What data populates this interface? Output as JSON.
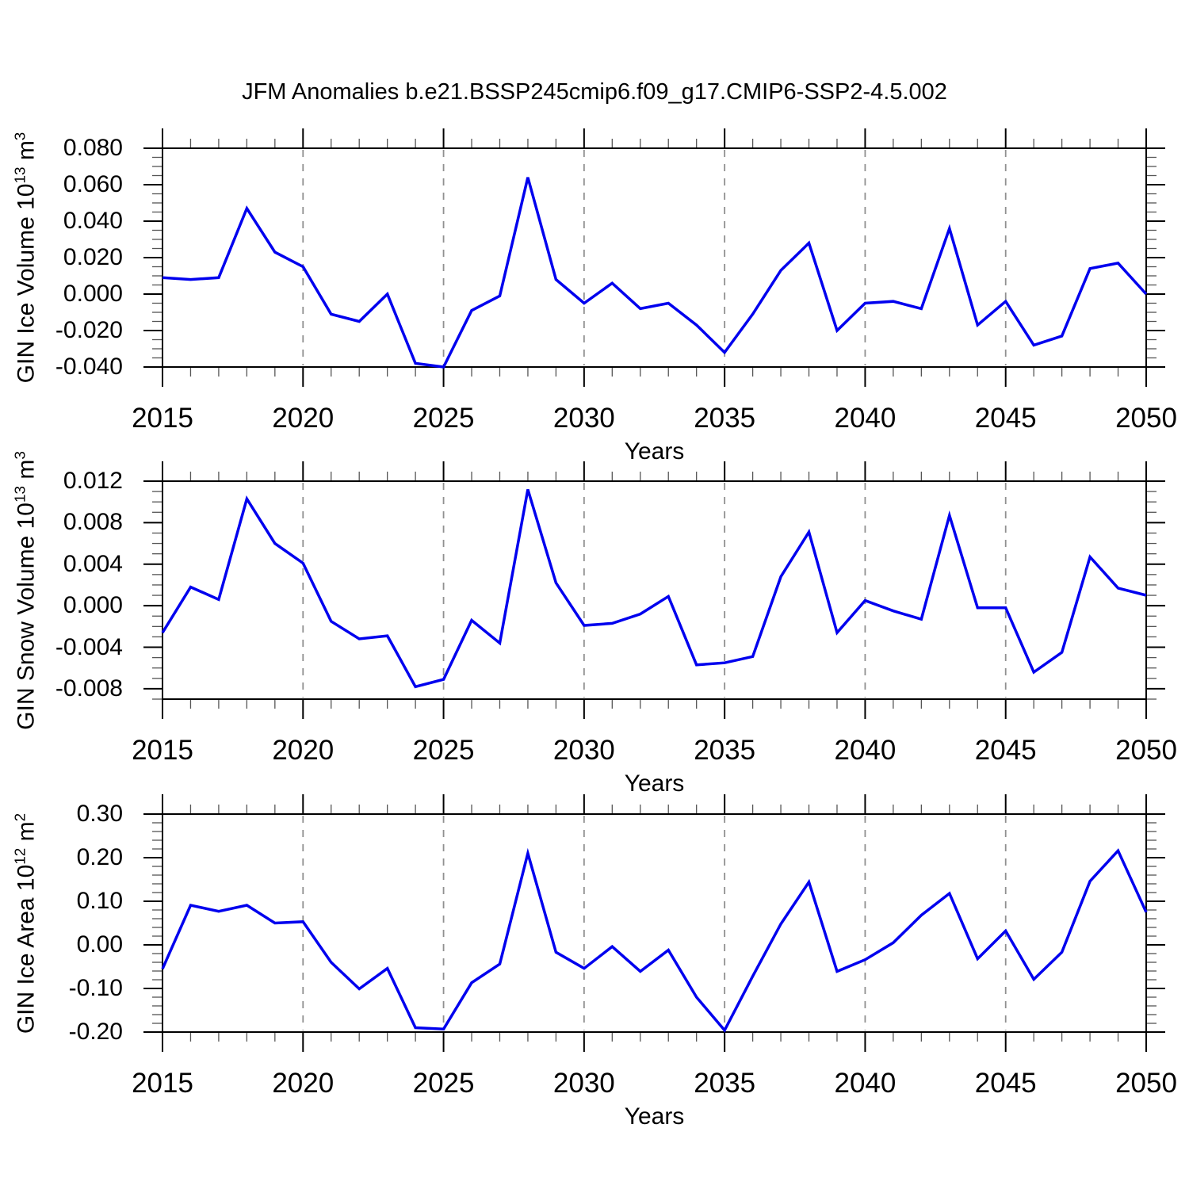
{
  "title": "JFM Anomalies b.e21.BSSP245cmip6.f09_g17.CMIP6-SSP2-4.5.002",
  "colors": {
    "series_line": "#0000EE",
    "gridline": "#909090",
    "axis": "#000000",
    "background": "#FFFFFF"
  },
  "x_axis": {
    "label": "Years",
    "min": 2015,
    "max": 2050,
    "major_step": 5,
    "minor_step": 1,
    "tick_labels": [
      "2015",
      "2020",
      "2025",
      "2030",
      "2035",
      "2040",
      "2045",
      "2050"
    ],
    "gridlines": [
      2020,
      2025,
      2030,
      2035,
      2040,
      2045
    ]
  },
  "years": [
    2015,
    2016,
    2017,
    2018,
    2019,
    2020,
    2021,
    2022,
    2023,
    2024,
    2025,
    2026,
    2027,
    2028,
    2029,
    2030,
    2031,
    2032,
    2033,
    2034,
    2035,
    2036,
    2037,
    2038,
    2039,
    2040,
    2041,
    2042,
    2043,
    2044,
    2045,
    2046,
    2047,
    2048,
    2049,
    2050
  ],
  "chart_data": [
    {
      "type": "line",
      "name": "gin-ice-volume",
      "ylabel_text": "GIN Ice Volume 10^13 m^3",
      "ylabel_segments": [
        {
          "t": "GIN Ice Volume 10"
        },
        {
          "t": "13",
          "sup": true
        },
        {
          "t": " m"
        },
        {
          "t": "3",
          "sup": true
        }
      ],
      "ylim": [
        -0.04,
        0.08
      ],
      "ymajor_step": 0.02,
      "yminor_step": 0.005,
      "ytick_labels": [
        "0.080",
        "0.060",
        "0.040",
        "0.020",
        "0.000",
        "-0.020",
        "-0.040"
      ],
      "xlabel": "Years",
      "grid": "x-dashed",
      "legend": "none",
      "values": [
        0.009,
        0.008,
        0.009,
        0.047,
        0.023,
        0.015,
        -0.011,
        -0.015,
        0.0,
        -0.038,
        -0.04,
        -0.009,
        -0.001,
        0.064,
        0.008,
        -0.005,
        0.006,
        -0.008,
        -0.005,
        -0.017,
        -0.032,
        -0.011,
        0.013,
        0.028,
        -0.02,
        -0.005,
        -0.004,
        -0.008,
        0.036,
        -0.017,
        -0.004,
        -0.028,
        -0.023,
        0.014,
        0.017,
        0.0
      ]
    },
    {
      "type": "line",
      "name": "gin-snow-volume",
      "ylabel_text": "GIN Snow Volume 10^13 m^3",
      "ylabel_segments": [
        {
          "t": "GIN Snow Volume 10"
        },
        {
          "t": "13",
          "sup": true
        },
        {
          "t": " m"
        },
        {
          "t": "3",
          "sup": true
        }
      ],
      "ylim": [
        -0.009,
        0.012
      ],
      "ymajor_step": 0.004,
      "yminor_step": 0.001,
      "ytick_labels": [
        "0.012",
        "0.008",
        "0.004",
        "0.000",
        "-0.004",
        "-0.008"
      ],
      "xlabel": "Years",
      "grid": "x-dashed",
      "legend": "none",
      "values": [
        -0.0026,
        0.0018,
        0.0006,
        0.0103,
        0.006,
        0.0041,
        -0.0015,
        -0.0032,
        -0.0029,
        -0.0078,
        -0.0071,
        -0.0014,
        -0.0036,
        0.0112,
        0.0022,
        -0.0019,
        -0.0017,
        -0.0008,
        0.0009,
        -0.0057,
        -0.0055,
        -0.0049,
        0.0028,
        0.0071,
        -0.0026,
        0.0005,
        -0.0005,
        -0.0013,
        0.0087,
        -0.0002,
        -0.0002,
        -0.0064,
        -0.0045,
        0.0047,
        0.0017,
        0.001
      ]
    },
    {
      "type": "line",
      "name": "gin-ice-area",
      "ylabel_text": "GIN Ice Area 10^12 m^2",
      "ylabel_segments": [
        {
          "t": "GIN Ice Area 10"
        },
        {
          "t": "12",
          "sup": true
        },
        {
          "t": " m"
        },
        {
          "t": "2",
          "sup": true
        }
      ],
      "ylim": [
        -0.2,
        0.3
      ],
      "ymajor_step": 0.1,
      "yminor_step": 0.02,
      "ytick_labels": [
        "0.30",
        "0.20",
        "0.10",
        "0.00",
        "-0.10",
        "-0.20"
      ],
      "xlabel": "Years",
      "grid": "x-dashed",
      "legend": "none",
      "values": [
        -0.055,
        0.091,
        0.077,
        0.091,
        0.05,
        0.053,
        -0.04,
        -0.101,
        -0.054,
        -0.19,
        -0.193,
        -0.087,
        -0.044,
        0.21,
        -0.017,
        -0.054,
        -0.004,
        -0.061,
        -0.012,
        -0.12,
        -0.196,
        -0.072,
        0.048,
        0.144,
        -0.061,
        -0.034,
        0.005,
        0.068,
        0.118,
        -0.032,
        0.032,
        -0.079,
        -0.017,
        0.146,
        0.216,
        0.075
      ]
    }
  ]
}
